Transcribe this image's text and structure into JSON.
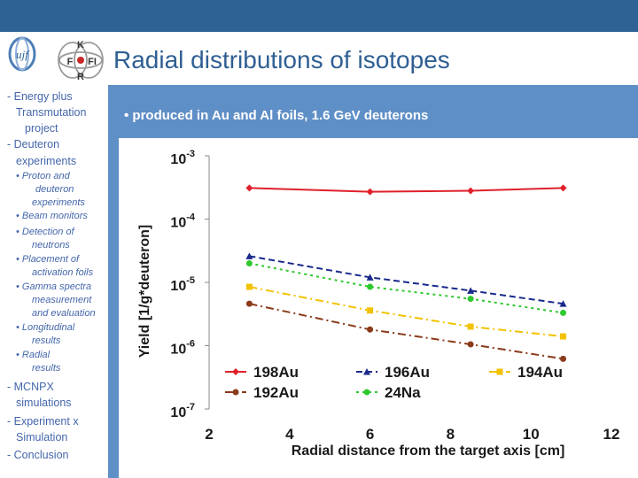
{
  "title": "Radial distributions of isotopes",
  "logos": {
    "left_text": "ujf",
    "right_letters": [
      "K",
      "F",
      "FI",
      "R"
    ]
  },
  "sidebar": {
    "items": [
      {
        "text": "- Energy plus",
        "level": "main"
      },
      {
        "text": "Transmutation",
        "level": "main"
      },
      {
        "text": "project",
        "level": "main"
      },
      {
        "text": "- Deuteron",
        "level": "main"
      },
      {
        "text": "experiments",
        "level": "main"
      },
      {
        "text": "• Proton and",
        "level": "sub"
      },
      {
        "text": "deuteron",
        "level": "sub"
      },
      {
        "text": "experiments",
        "level": "sub"
      },
      {
        "text": "• Beam monitors",
        "level": "sub"
      },
      {
        "text": "• Detection of",
        "level": "sub"
      },
      {
        "text": "neutrons",
        "level": "sub"
      },
      {
        "text": "• Placement of",
        "level": "sub"
      },
      {
        "text": "activation foils",
        "level": "sub"
      },
      {
        "text": "• Gamma spectra",
        "level": "sub"
      },
      {
        "text": "measurement",
        "level": "sub"
      },
      {
        "text": "and evaluation",
        "level": "sub"
      },
      {
        "text": "• Longitudinal",
        "level": "sub"
      },
      {
        "text": "results",
        "level": "sub"
      },
      {
        "text": "• Radial",
        "level": "sub"
      },
      {
        "text": "results",
        "level": "sub"
      },
      {
        "text": "- MCNPX",
        "level": "main"
      },
      {
        "text": "simulations",
        "level": "main"
      },
      {
        "text": "- Experiment x",
        "level": "main"
      },
      {
        "text": "Simulation",
        "level": "main"
      },
      {
        "text": "- Conclusion",
        "level": "main"
      }
    ]
  },
  "bullet": "• produced in Au and Al foils, 1.6 GeV deuterons",
  "colors": {
    "top_bar": "#2e6195",
    "panel": "#5f8fc7",
    "title": "#2f5f93",
    "sidebar_text": "#4466aa"
  },
  "chart_data": {
    "type": "line",
    "xlabel": "Radial distance from the target axis [cm]",
    "ylabel": "Yield [1/g*deuteron]",
    "xlim": [
      2,
      12
    ],
    "ylim": [
      1e-07,
      0.001
    ],
    "y_scale": "log",
    "x_ticks": [
      "2",
      "4",
      "6",
      "8",
      "10",
      "12"
    ],
    "y_ticks": [
      {
        "base": "10",
        "exp": "-3"
      },
      {
        "base": "10",
        "exp": "-4"
      },
      {
        "base": "10",
        "exp": "-5"
      },
      {
        "base": "10",
        "exp": "-6"
      },
      {
        "base": "10",
        "exp": "-7"
      }
    ],
    "grid": false,
    "legend_position": "bottom",
    "x": [
      3,
      6,
      8.5,
      10.8
    ],
    "series": [
      {
        "name": "198Au",
        "values": [
          0.00031,
          0.00027,
          0.00028,
          0.00031
        ],
        "color": "#e0202a",
        "dash": "solid",
        "marker": "diamond"
      },
      {
        "name": "196Au",
        "values": [
          2.6e-05,
          1.2e-05,
          7.4e-06,
          4.6e-06
        ],
        "color": "#1a2a8c",
        "dash": "dash",
        "marker": "triangle"
      },
      {
        "name": "194Au",
        "values": [
          8.5e-06,
          3.6e-06,
          2e-06,
          1.4e-06
        ],
        "color": "#f2c200",
        "dash": "dashdot",
        "marker": "square"
      },
      {
        "name": "192Au",
        "values": [
          4.6e-06,
          1.8e-06,
          1.05e-06,
          6.2e-07
        ],
        "color": "#8b3a1a",
        "dash": "dashdot",
        "marker": "circle"
      },
      {
        "name": "24Na",
        "values": [
          2e-05,
          8.5e-06,
          5.5e-06,
          3.3e-06
        ],
        "color": "#2ec82e",
        "dash": "dot",
        "marker": "circle"
      }
    ]
  }
}
